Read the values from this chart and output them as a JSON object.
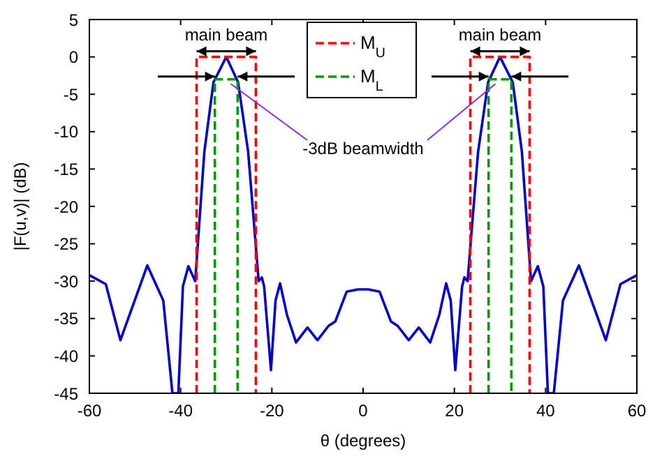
{
  "chart_data": {
    "type": "line",
    "xlabel": "θ (degrees)",
    "ylabel": "|F(u,v)| (dB)",
    "xlim": [
      -60,
      60
    ],
    "xticks": [
      -60,
      -40,
      -20,
      0,
      20,
      40,
      60
    ],
    "ylim": [
      -45,
      5
    ],
    "yticks": [
      5,
      0,
      -5,
      -10,
      -15,
      -20,
      -25,
      -30,
      -35,
      -40,
      -45
    ],
    "legend": "top",
    "marker": "none",
    "series": [
      {
        "color": "#0000cc",
        "line_style": "solid",
        "x": [
          -60,
          -56.4,
          -53.2,
          -47.3,
          -43.8,
          -41.8,
          -40.5,
          -39.5,
          -38.3,
          -36.8,
          -36.1,
          -34.8,
          -32.8,
          -30,
          -27.4,
          -25.2,
          -23.7,
          -22.9,
          -22.2,
          -21.7,
          -20.2,
          -19.2,
          -18.2,
          -16.7,
          -14.7,
          -12.2,
          -10,
          -7.6,
          -6.1,
          -3.6,
          -1.1,
          0,
          1.1,
          3.6,
          6.1,
          7.6,
          10,
          12.2,
          14.7,
          16.7,
          18.2,
          19.2,
          20.2,
          21.7,
          22.2,
          22.9,
          23.7,
          25.2,
          27.4,
          30,
          32.8,
          34.8,
          36.1,
          36.8,
          38.3,
          39.5,
          40.5,
          41.8,
          43.8,
          47.3,
          53.2,
          56.4,
          60
        ],
        "values": [
          -29.2,
          -30.4,
          -37.9,
          -27.9,
          -32.6,
          -45,
          -45,
          -30.7,
          -28,
          -30,
          -23.9,
          -12.7,
          -3.4,
          0,
          -3.4,
          -12.7,
          -23.9,
          -30,
          -29.5,
          -30.7,
          -41.9,
          -32.6,
          -30.3,
          -34.5,
          -38.2,
          -36.2,
          -37.9,
          -36,
          -35.4,
          -31.4,
          -31.1,
          -31.1,
          -31.1,
          -31.4,
          -35.4,
          -36,
          -37.9,
          -36.2,
          -38.2,
          -34.5,
          -30.3,
          -32.6,
          -41.9,
          -30.7,
          -29.5,
          -30,
          -23.9,
          -12.7,
          -3.4,
          0,
          -3.4,
          -12.7,
          -23.9,
          -30,
          -28,
          -30.7,
          -45,
          -45,
          -32.6,
          -27.9,
          -37.9,
          -30.4,
          -29.2
        ]
      },
      {
        "name": "M$_{U}$",
        "color": "#ff0000",
        "line_style": "dashed",
        "x": [
          -36.5,
          -36.5,
          -23.5,
          -23.5,
          0,
          23.5,
          23.5,
          36.5,
          36.5
        ],
        "values": [
          -45,
          0,
          0,
          -45,
          null,
          -45,
          0,
          0,
          -45
        ]
      },
      {
        "name": "M$_{L}$",
        "color": "#009900",
        "line_style": "dashed",
        "x": [
          -32.5,
          -32.5,
          -27.5,
          -27.5,
          0,
          27.5,
          27.5,
          32.5,
          32.5
        ],
        "values": [
          -45,
          -3,
          -3,
          -45,
          null,
          -45,
          -3,
          -3,
          -45
        ]
      }
    ],
    "annotations": [
      {
        "text": "main beam",
        "x": -30,
        "y": 0
      },
      {
        "text": "main beam",
        "x": 30,
        "y": 0
      },
      {
        "text": "-3dB beamwidth",
        "x": -29,
        "y": -3.6
      }
    ]
  }
}
